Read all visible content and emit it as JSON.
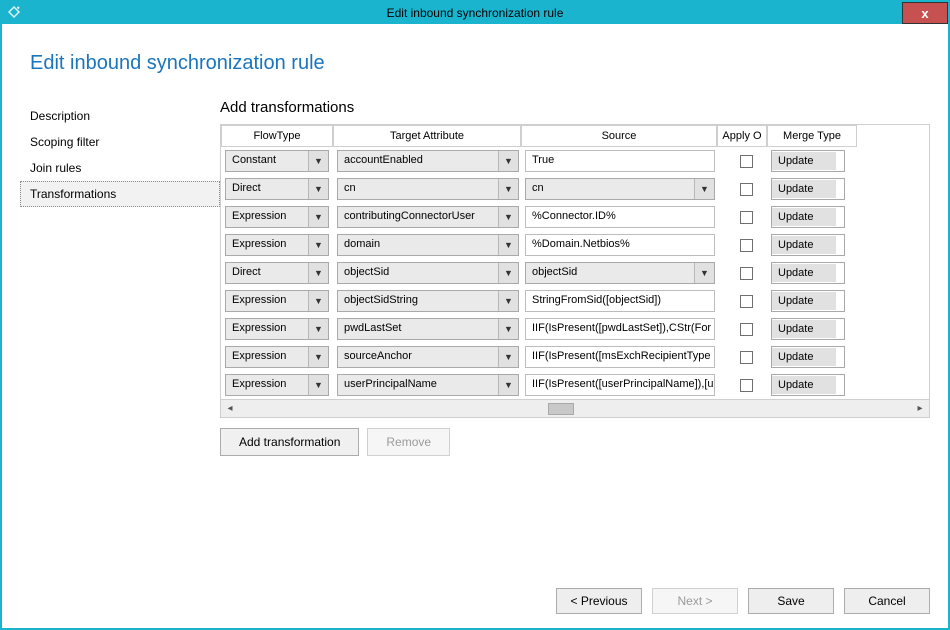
{
  "window": {
    "title": "Edit inbound synchronization rule"
  },
  "page": {
    "title": "Edit inbound synchronization rule"
  },
  "sidebar": {
    "items": [
      {
        "label": "Description"
      },
      {
        "label": "Scoping filter"
      },
      {
        "label": "Join rules"
      },
      {
        "label": "Transformations",
        "active": true
      }
    ]
  },
  "panel": {
    "title": "Add transformations",
    "headers": {
      "flow": "FlowType",
      "target": "Target Attribute",
      "source": "Source",
      "apply": "Apply O",
      "merge": "Merge Type"
    },
    "rows": [
      {
        "flow": "Constant",
        "target": "accountEnabled",
        "source": "True",
        "sourceIsCombo": false,
        "merge": "Update"
      },
      {
        "flow": "Direct",
        "target": "cn",
        "source": "cn",
        "sourceIsCombo": true,
        "merge": "Update"
      },
      {
        "flow": "Expression",
        "target": "contributingConnectorUser",
        "source": "%Connector.ID%",
        "sourceIsCombo": false,
        "merge": "Update"
      },
      {
        "flow": "Expression",
        "target": "domain",
        "source": "%Domain.Netbios%",
        "sourceIsCombo": false,
        "merge": "Update"
      },
      {
        "flow": "Direct",
        "target": "objectSid",
        "source": "objectSid",
        "sourceIsCombo": true,
        "merge": "Update"
      },
      {
        "flow": "Expression",
        "target": "objectSidString",
        "source": "StringFromSid([objectSid])",
        "sourceIsCombo": false,
        "merge": "Update"
      },
      {
        "flow": "Expression",
        "target": "pwdLastSet",
        "source": "IIF(IsPresent([pwdLastSet]),CStr(For",
        "sourceIsCombo": false,
        "merge": "Update"
      },
      {
        "flow": "Expression",
        "target": "sourceAnchor",
        "source": "IIF(IsPresent([msExchRecipientType",
        "sourceIsCombo": false,
        "merge": "Update"
      },
      {
        "flow": "Expression",
        "target": "userPrincipalName",
        "source": "IIF(IsPresent([userPrincipalName]),[u",
        "sourceIsCombo": false,
        "merge": "Update"
      }
    ],
    "buttons": {
      "add": "Add transformation",
      "remove": "Remove"
    }
  },
  "footer": {
    "prev": "< Previous",
    "next": "Next >",
    "save": "Save",
    "cancel": "Cancel"
  }
}
